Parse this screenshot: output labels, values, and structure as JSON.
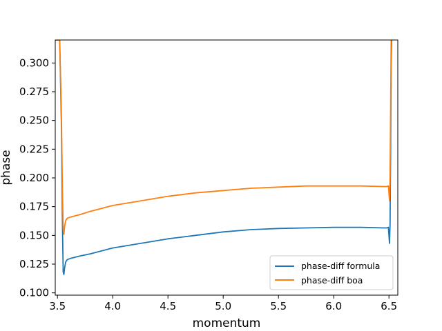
{
  "chart_data": {
    "type": "line",
    "title": "",
    "xlabel": "momentum",
    "ylabel": "phase",
    "xlim": [
      3.48,
      6.58
    ],
    "ylim": [
      0.098,
      0.32
    ],
    "xticks": [
      3.5,
      4.0,
      4.5,
      5.0,
      5.5,
      6.0,
      6.5
    ],
    "xtick_labels": [
      "3.5",
      "4.0",
      "4.5",
      "5.0",
      "5.5",
      "6.0",
      "6.5"
    ],
    "yticks": [
      0.1,
      0.125,
      0.15,
      0.175,
      0.2,
      0.225,
      0.25,
      0.275,
      0.3
    ],
    "ytick_labels": [
      "0.100",
      "0.125",
      "0.150",
      "0.175",
      "0.200",
      "0.225",
      "0.250",
      "0.275",
      "0.300"
    ],
    "grid": false,
    "legend_position": "bottom-right",
    "series": [
      {
        "name": "phase-diff formula",
        "color": "#1f77b4",
        "x": [
          3.48,
          3.5,
          3.52,
          3.535,
          3.545,
          3.552,
          3.558,
          3.565,
          3.575,
          3.59,
          3.62,
          3.7,
          3.8,
          4.0,
          4.25,
          4.5,
          4.75,
          5.0,
          5.25,
          5.5,
          5.75,
          6.0,
          6.25,
          6.45,
          6.48,
          6.495,
          6.505,
          6.51,
          6.515,
          6.52,
          6.525
        ],
        "y": [
          0.32,
          0.32,
          0.32,
          0.25,
          0.16,
          0.118,
          0.116,
          0.122,
          0.127,
          0.129,
          0.13,
          0.132,
          0.134,
          0.139,
          0.143,
          0.147,
          0.15,
          0.153,
          0.155,
          0.156,
          0.1565,
          0.157,
          0.157,
          0.1565,
          0.1565,
          0.157,
          0.143,
          0.16,
          0.22,
          0.3,
          0.32
        ]
      },
      {
        "name": "phase-diff boa",
        "color": "#ff7f0e",
        "x": [
          3.48,
          3.5,
          3.52,
          3.535,
          3.545,
          3.552,
          3.558,
          3.565,
          3.575,
          3.59,
          3.62,
          3.7,
          3.8,
          4.0,
          4.25,
          4.5,
          4.75,
          5.0,
          5.25,
          5.5,
          5.75,
          6.0,
          6.25,
          6.45,
          6.48,
          6.495,
          6.505,
          6.51,
          6.515,
          6.52,
          6.525
        ],
        "y": [
          0.32,
          0.32,
          0.32,
          0.26,
          0.19,
          0.155,
          0.151,
          0.158,
          0.163,
          0.165,
          0.166,
          0.168,
          0.171,
          0.176,
          0.18,
          0.184,
          0.187,
          0.189,
          0.191,
          0.192,
          0.193,
          0.193,
          0.193,
          0.1925,
          0.1925,
          0.193,
          0.18,
          0.2,
          0.26,
          0.32,
          0.32
        ]
      }
    ]
  }
}
